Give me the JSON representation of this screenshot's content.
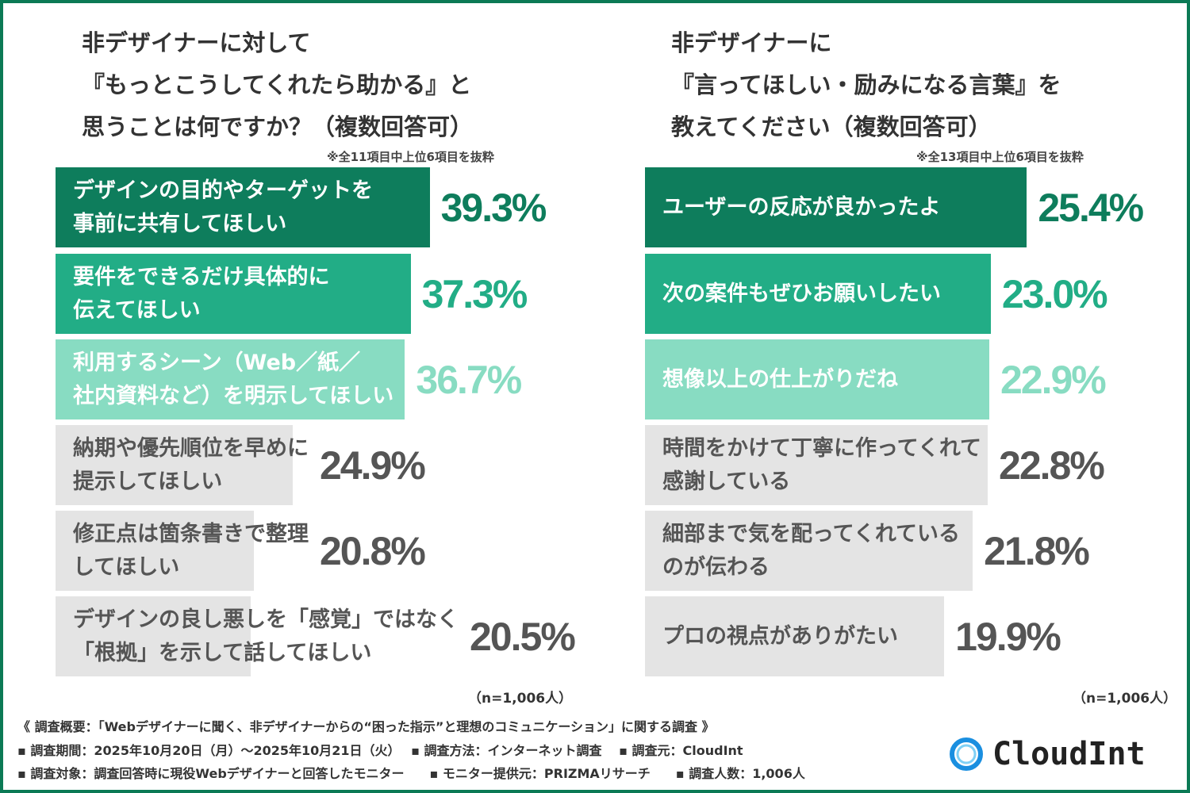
{
  "colors": {
    "rank1": "#0e7d5c",
    "rank2": "#22ad86",
    "rank3": "#88dcc2",
    "other": "#e4e4e4",
    "other_text": "#555555",
    "frame": "#0b7a55"
  },
  "chart_data": [
    {
      "type": "bar",
      "orientation": "horizontal",
      "title": "非デザイナーに対して\n『もっとこうしてくれたら助かる』と\n思うことは何ですか？（複数回答可）",
      "note": "※全11項目中上位6項目を抜粋",
      "n_label": "（n=1,006人）",
      "categories": [
        "デザインの目的やターゲットを\n事前に共有してほしい",
        "要件をできるだけ具体的に\n伝えてほしい",
        "利用するシーン（Web／紙／\n社内資料など）を明示してほしい",
        "納期や優先順位を早めに\n提示してほしい",
        "修正点は箇条書きで整理\nしてほしい",
        "デザインの良し悪しを「感覚」ではなく\n「根拠」を示して話してほしい"
      ],
      "values": [
        39.3,
        37.3,
        36.7,
        24.9,
        20.8,
        20.5
      ],
      "value_labels": [
        "39.3%",
        "37.3%",
        "36.7%",
        "24.9%",
        "20.8%",
        "20.5%"
      ]
    },
    {
      "type": "bar",
      "orientation": "horizontal",
      "title": "非デザイナーに\n『言ってほしい・励みになる言葉』を\n教えてください（複数回答可）",
      "note": "※全13項目中上位6項目を抜粋",
      "n_label": "（n=1,006人）",
      "categories": [
        "ユーザーの反応が良かったよ",
        "次の案件もぜひお願いしたい",
        "想像以上の仕上がりだね",
        "時間をかけて丁寧に作ってくれて\n感謝している",
        "細部まで気を配ってくれている\nのが伝わる",
        "プロの視点がありがたい"
      ],
      "values": [
        25.4,
        23.0,
        22.9,
        22.8,
        21.8,
        19.9
      ],
      "value_labels": [
        "25.4%",
        "23.0%",
        "22.9%",
        "22.8%",
        "21.8%",
        "19.9%"
      ]
    }
  ],
  "footer": {
    "summary": "《 調査概要：「Webデザイナーに聞く、非デザイナーからの“困った指示”と理想のコミュニケーション」に関する調査 》",
    "line1": "▪ 調査期間：2025年10月20日（月）～2025年10月21日（火）　 ▪ 調査方法：インターネット調査　 ▪ 調査元：CloudInt",
    "line2": "▪ 調査対象：調査回答時に現役Webデザイナーと回答したモニター　　▪ モニター提供元：PRIZMAリサーチ　　▪ 調査人数：1,006人"
  },
  "logo": {
    "text": "CloudInt"
  }
}
